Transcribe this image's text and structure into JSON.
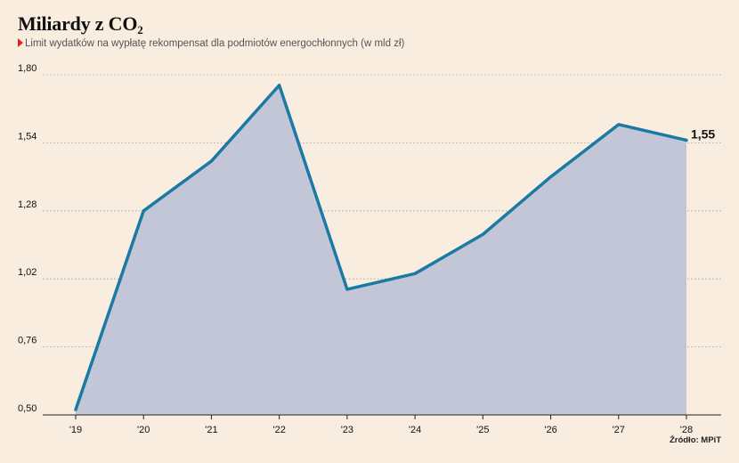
{
  "header": {
    "title_main": "Miliardy z CO",
    "title_sub": "2",
    "subtitle": "Limit wydatków na wypłatę rekompensat dla podmiotów energochłonnych (w mld zł)",
    "source": "Źródło: MPiT"
  },
  "colors": {
    "line": "#1a7aa3",
    "area": "#c2c6d6",
    "grid": "#9a9a9a",
    "accent": "#e0271e"
  },
  "chart_data": {
    "type": "area",
    "categories": [
      "'19",
      "'20",
      "'21",
      "'22",
      "'23",
      "'24",
      "'25",
      "'26",
      "'27",
      "'28"
    ],
    "series": [
      {
        "values": [
          0.52,
          1.28,
          1.47,
          1.76,
          0.98,
          1.04,
          1.19,
          1.41,
          1.61,
          1.55
        ]
      }
    ],
    "yticks": [
      "0,50",
      "0,76",
      "1,02",
      "1,28",
      "1,54",
      "1,80"
    ],
    "ylim": [
      0.5,
      1.8
    ],
    "end_label": "1,55",
    "grid": true
  }
}
